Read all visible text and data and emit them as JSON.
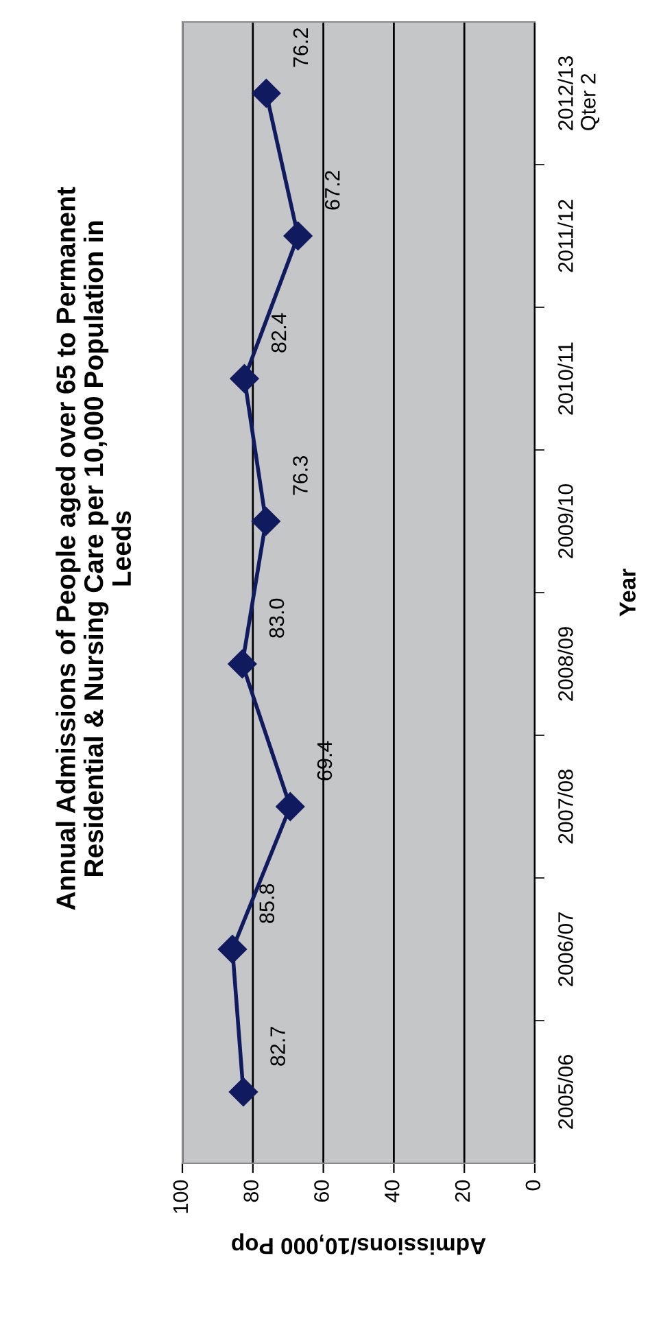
{
  "chart_data": {
    "type": "line",
    "orientation": "horizontal",
    "title": "Annual Admissions of People aged over 65 to Permanent\nResidential & Nursing Care per 10,000 Population in\nLeeds",
    "xlabel": "Admissions/10,000 Pop",
    "ylabel": "Year",
    "categories": [
      "2012/13\nQter 2",
      "2011/12",
      "2010/11",
      "2009/10",
      "2008/09",
      "2007/08",
      "2006/07",
      "2005/06"
    ],
    "series": [
      {
        "color": "#101a5e",
        "values": [
          76.2,
          67.2,
          82.4,
          76.3,
          83.0,
          69.4,
          85.8,
          82.7
        ],
        "value_labels": [
          "76.2",
          "67.2",
          "82.4",
          "76.3",
          "83.0",
          "69.4",
          "85.8",
          "82.7"
        ]
      }
    ],
    "xlim": [
      100,
      0
    ],
    "xticks": [
      0,
      20,
      40,
      60,
      80,
      100
    ],
    "grid": "x",
    "marker": "diamond",
    "line_style": "solid",
    "legend": false
  }
}
